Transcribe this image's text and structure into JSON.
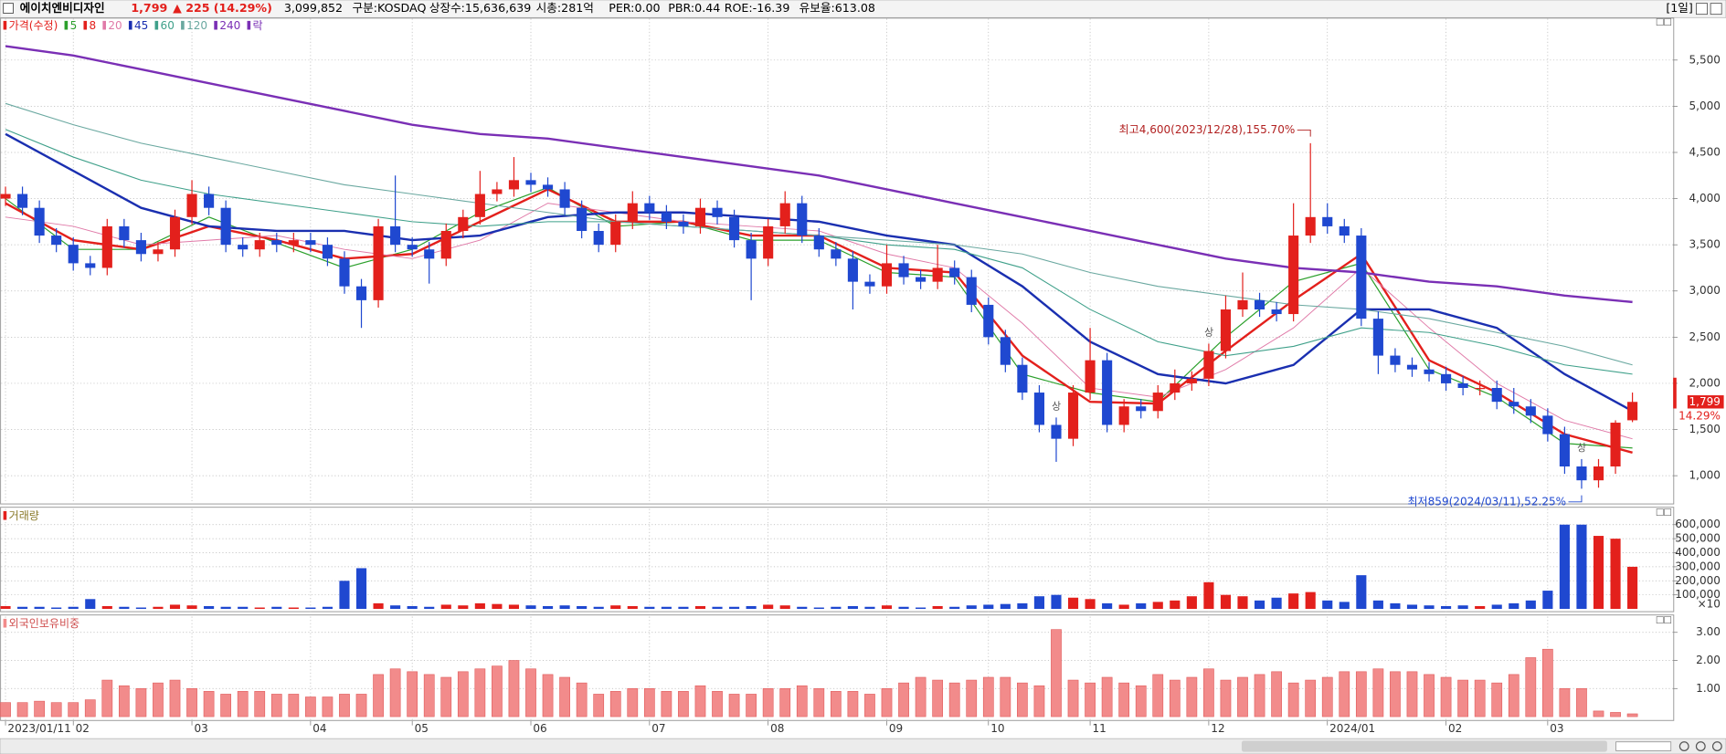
{
  "header": {
    "name": "에이치엔비디자인",
    "price": "1,799",
    "change": "▲ 225",
    "change_pct": "(14.29%)",
    "volume": "3,099,852",
    "market": "구분:KOSDAQ",
    "shares": "상장수:15,636,639",
    "cap": "시총:281억",
    "per": "PER:0.00",
    "pbr": "PBR:0.44",
    "roe": "ROE:-16.39",
    "reserve": "유보율:613.08",
    "period": "[1일]"
  },
  "chart_data": [
    {
      "type": "candlestick",
      "name": "가격(수정)",
      "up_color": "#e3201c",
      "down_color": "#1f48d0",
      "open": [
        4000,
        4050,
        3900,
        3600,
        3500,
        3300,
        3250,
        3700,
        3550,
        3400,
        3450,
        3800,
        4050,
        3900,
        3500,
        3450,
        3550,
        3500,
        3550,
        3500,
        3350,
        3050,
        2900,
        3700,
        3500,
        3450,
        3350,
        3650,
        3800,
        4050,
        4100,
        4200,
        4150,
        4100,
        3900,
        3650,
        3500,
        3750,
        3950,
        3850,
        3750,
        3700,
        3900,
        3800,
        3550,
        3350,
        3700,
        3950,
        3600,
        3450,
        3350,
        3100,
        3050,
        3300,
        3150,
        3100,
        3250,
        3150,
        2850,
        2500,
        2200,
        1900,
        1550,
        1400,
        1900,
        2250,
        1550,
        1750,
        1700,
        1900,
        2000,
        2050,
        2350,
        2800,
        2900,
        2800,
        2750,
        3600,
        3800,
        3700,
        3600,
        2700,
        2300,
        2200,
        2150,
        2100,
        2000,
        1950,
        1950,
        1800,
        1750,
        1650,
        1450,
        1100,
        950,
        1100,
        1600
      ],
      "high": [
        4130,
        4130,
        3980,
        3680,
        3580,
        3380,
        3780,
        3780,
        3630,
        3530,
        3880,
        4200,
        4130,
        3980,
        3580,
        3630,
        3630,
        3630,
        3630,
        3580,
        3430,
        3130,
        3780,
        4250,
        3580,
        3530,
        3730,
        3880,
        4300,
        4180,
        4450,
        4280,
        4230,
        4180,
        3980,
        3730,
        3830,
        4080,
        4030,
        3930,
        3830,
        4000,
        3980,
        3880,
        3630,
        3780,
        4080,
        4030,
        3680,
        3530,
        3430,
        3180,
        3500,
        3380,
        3230,
        3500,
        3330,
        3230,
        2930,
        2580,
        2280,
        1980,
        1630,
        1980,
        2600,
        2330,
        1830,
        1830,
        1980,
        2150,
        2130,
        2430,
        2950,
        3200,
        2980,
        2880,
        3950,
        4600,
        3950,
        3780,
        3680,
        2780,
        2380,
        2280,
        2230,
        2180,
        2080,
        2030,
        2030,
        1950,
        1830,
        1730,
        1530,
        1180,
        1180,
        1600,
        1900
      ],
      "low": [
        3920,
        3820,
        3520,
        3420,
        3220,
        3170,
        3170,
        3470,
        3320,
        3320,
        3370,
        3720,
        3820,
        3420,
        3370,
        3370,
        3420,
        3420,
        3420,
        3270,
        2970,
        2600,
        2820,
        3420,
        3370,
        3080,
        3270,
        3570,
        3720,
        3970,
        4020,
        4070,
        4020,
        3820,
        3570,
        3420,
        3420,
        3670,
        3770,
        3670,
        3620,
        3620,
        3720,
        3470,
        2900,
        3270,
        3620,
        3520,
        3370,
        3270,
        2800,
        2970,
        2970,
        3070,
        3020,
        3020,
        3070,
        2770,
        2420,
        2120,
        1820,
        1470,
        1150,
        1320,
        1820,
        1470,
        1470,
        1620,
        1620,
        1820,
        1920,
        1970,
        2270,
        2720,
        2720,
        2670,
        2670,
        3520,
        3620,
        3520,
        2620,
        2100,
        2120,
        2070,
        2020,
        1920,
        1870,
        1870,
        1720,
        1670,
        1570,
        1370,
        1020,
        859,
        870,
        1020,
        1580
      ],
      "close": [
        4050,
        3900,
        3600,
        3500,
        3300,
        3250,
        3700,
        3550,
        3400,
        3450,
        3800,
        4050,
        3900,
        3500,
        3450,
        3550,
        3500,
        3550,
        3500,
        3350,
        3050,
        2900,
        3700,
        3500,
        3450,
        3350,
        3650,
        3800,
        4050,
        4100,
        4200,
        4150,
        4100,
        3900,
        3650,
        3500,
        3750,
        3950,
        3850,
        3750,
        3700,
        3900,
        3800,
        3550,
        3350,
        3700,
        3950,
        3600,
        3450,
        3350,
        3100,
        3050,
        3300,
        3150,
        3100,
        3250,
        3150,
        2850,
        2500,
        2200,
        1900,
        1550,
        1400,
        1900,
        2250,
        1550,
        1750,
        1700,
        1900,
        2000,
        2050,
        2350,
        2800,
        2900,
        2800,
        2750,
        3600,
        3800,
        3700,
        3600,
        2700,
        2300,
        2200,
        2150,
        2100,
        2000,
        1950,
        1950,
        1800,
        1750,
        1650,
        1450,
        1100,
        950,
        1100,
        1574,
        1799
      ],
      "ma_series": [
        {
          "name": "5",
          "color": "#2ca02c",
          "width": 1,
          "values": [
            4000,
            3450,
            3450,
            3800,
            3520,
            3250,
            3450,
            3850,
            4120,
            3700,
            3750,
            3550,
            3550,
            3200,
            3150,
            2100,
            1900,
            1800,
            2500,
            3100,
            3300,
            2150,
            1850,
            1350,
            1300
          ]
        },
        {
          "name": "8",
          "color": "#e3201c",
          "width": 2,
          "values": [
            3950,
            3550,
            3450,
            3700,
            3550,
            3350,
            3400,
            3750,
            4100,
            3750,
            3750,
            3600,
            3600,
            3250,
            3200,
            2300,
            1800,
            1780,
            2350,
            2900,
            3400,
            2250,
            1900,
            1450,
            1250
          ]
        },
        {
          "name": "20",
          "color": "#e07aa8",
          "width": 0.8,
          "values": [
            3800,
            3700,
            3500,
            3550,
            3600,
            3450,
            3350,
            3550,
            3950,
            3850,
            3750,
            3700,
            3650,
            3400,
            3250,
            2650,
            1950,
            1850,
            2150,
            2600,
            3250,
            2600,
            2000,
            1600,
            1400
          ]
        },
        {
          "name": "45",
          "color": "#1a2fb0",
          "width": 2,
          "values": [
            4700,
            4300,
            3900,
            3700,
            3650,
            3650,
            3550,
            3600,
            3800,
            3850,
            3850,
            3800,
            3750,
            3600,
            3500,
            3050,
            2450,
            2100,
            2000,
            2200,
            2800,
            2800,
            2600,
            2100,
            1700
          ]
        },
        {
          "name": "60",
          "color": "#3fa08a",
          "width": 0.9,
          "values": [
            4750,
            4450,
            4200,
            4050,
            3950,
            3850,
            3750,
            3700,
            3750,
            3750,
            3700,
            3650,
            3600,
            3500,
            3450,
            3250,
            2800,
            2450,
            2300,
            2400,
            2600,
            2550,
            2400,
            2200,
            2100
          ]
        },
        {
          "name": "120",
          "color": "#6aa8a0",
          "width": 0.9,
          "values": [
            5030,
            4800,
            4600,
            4450,
            4300,
            4150,
            4050,
            3950,
            3850,
            3750,
            3700,
            3650,
            3600,
            3550,
            3500,
            3400,
            3200,
            3050,
            2950,
            2850,
            2800,
            2700,
            2550,
            2400,
            2200
          ]
        },
        {
          "name": "240",
          "color": "#7a2fb5",
          "width": 2,
          "values": [
            5650,
            5550,
            5400,
            5250,
            5100,
            4950,
            4800,
            4700,
            4650,
            4550,
            4450,
            4350,
            4250,
            4100,
            3950,
            3800,
            3650,
            3500,
            3350,
            3250,
            3200,
            3100,
            3050,
            2950,
            2880
          ]
        }
      ],
      "legend_extra": {
        "name": "락",
        "color": "#7a2fb5"
      },
      "ylim": [
        700,
        5960
      ],
      "yticks": [
        {
          "value": 1000,
          "label": "1,000"
        },
        {
          "value": 1500,
          "label": "1,500"
        },
        {
          "value": 2000,
          "label": "2,000"
        },
        {
          "value": 2500,
          "label": "2,500"
        },
        {
          "value": 3000,
          "label": "3,000"
        },
        {
          "value": 3500,
          "label": "3,500"
        },
        {
          "value": 4000,
          "label": "4,000"
        },
        {
          "value": 4500,
          "label": "4,500"
        },
        {
          "value": 5000,
          "label": "5,000"
        },
        {
          "value": 5500,
          "label": "5,500"
        }
      ],
      "last_change_label": "14.29%",
      "annotations": [
        {
          "index": 77,
          "label": "최고4,600(2023/12/28),155.70%"
        },
        {
          "index": 93,
          "label": "최저859(2024/03/11),52.25%"
        }
      ],
      "rights_marks": [
        {
          "index": 62,
          "label": "상"
        },
        {
          "index": 71,
          "label": "상"
        },
        {
          "index": 93,
          "label": "상"
        }
      ],
      "x_labels": [
        {
          "index": 0,
          "label": "2023/01/11"
        },
        {
          "index": 4,
          "label": "02"
        },
        {
          "index": 11,
          "label": "03"
        },
        {
          "index": 18,
          "label": "04"
        },
        {
          "index": 24,
          "label": "05"
        },
        {
          "index": 31,
          "label": "06"
        },
        {
          "index": 38,
          "label": "07"
        },
        {
          "index": 45,
          "label": "08"
        },
        {
          "index": 52,
          "label": "09"
        },
        {
          "index": 58,
          "label": "10"
        },
        {
          "index": 64,
          "label": "11"
        },
        {
          "index": 71,
          "label": "12"
        },
        {
          "index": 78,
          "label": "2024/01"
        },
        {
          "index": 85,
          "label": "02"
        },
        {
          "index": 91,
          "label": "03"
        }
      ]
    },
    {
      "type": "bar",
      "title": "거래량",
      "unit_label": "×10",
      "values": [
        20000,
        15000,
        15000,
        10000,
        15000,
        70000,
        20000,
        15000,
        10000,
        15000,
        30000,
        25000,
        20000,
        15000,
        15000,
        10000,
        15000,
        10000,
        10000,
        15000,
        200000,
        290000,
        40000,
        25000,
        20000,
        15000,
        30000,
        25000,
        40000,
        35000,
        30000,
        25000,
        20000,
        25000,
        20000,
        15000,
        25000,
        20000,
        15000,
        15000,
        15000,
        20000,
        15000,
        15000,
        20000,
        30000,
        25000,
        15000,
        10000,
        15000,
        20000,
        15000,
        25000,
        15000,
        10000,
        20000,
        15000,
        25000,
        30000,
        35000,
        40000,
        90000,
        100000,
        80000,
        70000,
        40000,
        30000,
        40000,
        50000,
        60000,
        90000,
        190000,
        100000,
        90000,
        60000,
        80000,
        110000,
        120000,
        60000,
        50000,
        240000,
        60000,
        40000,
        30000,
        25000,
        20000,
        25000,
        20000,
        30000,
        40000,
        60000,
        130000,
        600000,
        600000,
        520000,
        500000,
        300000
      ],
      "ylim": [
        0,
        720000
      ],
      "yticks": [
        {
          "value": 100000,
          "label": "100,000"
        },
        {
          "value": 200000,
          "label": "200,000"
        },
        {
          "value": 300000,
          "label": "300,000"
        },
        {
          "value": 400000,
          "label": "400,000"
        },
        {
          "value": 500000,
          "label": "500,000"
        },
        {
          "value": 600000,
          "label": "600,000"
        }
      ]
    },
    {
      "type": "bar",
      "title": "외국인보유비중",
      "color": "#f28b8b",
      "stroke": "#e05a5a",
      "values": [
        0.5,
        0.5,
        0.55,
        0.5,
        0.5,
        0.6,
        1.3,
        1.1,
        1.0,
        1.2,
        1.3,
        1.0,
        0.9,
        0.8,
        0.9,
        0.9,
        0.8,
        0.8,
        0.7,
        0.7,
        0.8,
        0.8,
        1.5,
        1.7,
        1.6,
        1.5,
        1.4,
        1.6,
        1.7,
        1.8,
        2.0,
        1.7,
        1.5,
        1.4,
        1.2,
        0.8,
        0.9,
        1.0,
        1.0,
        0.9,
        0.9,
        1.1,
        0.9,
        0.8,
        0.8,
        1.0,
        1.0,
        1.1,
        1.0,
        0.9,
        0.9,
        0.8,
        1.0,
        1.2,
        1.4,
        1.3,
        1.2,
        1.3,
        1.4,
        1.4,
        1.2,
        1.1,
        3.1,
        1.3,
        1.2,
        1.4,
        1.2,
        1.1,
        1.5,
        1.3,
        1.4,
        1.7,
        1.3,
        1.4,
        1.5,
        1.6,
        1.2,
        1.3,
        1.4,
        1.6,
        1.6,
        1.7,
        1.6,
        1.6,
        1.5,
        1.4,
        1.3,
        1.3,
        1.2,
        1.5,
        2.1,
        2.4,
        1.0,
        1.0,
        0.2,
        0.15,
        0.1
      ],
      "ylim": [
        0,
        3.6
      ],
      "yticks": [
        {
          "value": 1,
          "label": "1.00"
        },
        {
          "value": 2,
          "label": "2.00"
        },
        {
          "value": 3,
          "label": "3.00"
        }
      ]
    }
  ]
}
